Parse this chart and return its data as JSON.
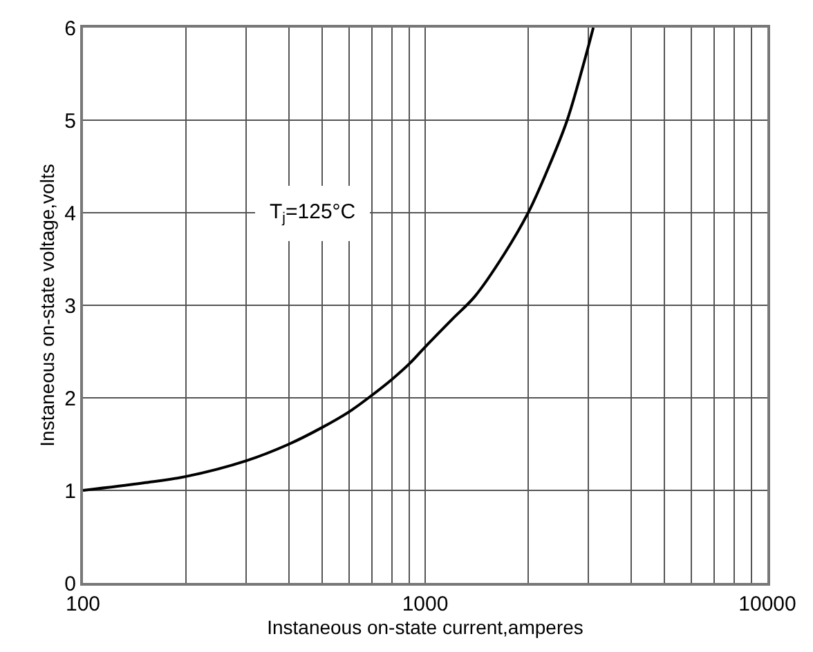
{
  "chart_data": {
    "type": "line",
    "xlabel": "Instaneous on-state current,amperes",
    "ylabel": "Instaneous on-state voltage,volts",
    "annotations": [
      "T$_{j}$=125°C"
    ],
    "x": [
      100,
      150,
      200,
      300,
      400,
      500,
      600,
      700,
      800,
      900,
      1000,
      1200,
      1400,
      1700,
      2000,
      2300,
      2600,
      2900,
      3100
    ],
    "series": [
      {
        "color": "#000000",
        "values": [
          1.0,
          1.08,
          1.15,
          1.32,
          1.5,
          1.68,
          1.85,
          2.03,
          2.2,
          2.37,
          2.55,
          2.85,
          3.1,
          3.55,
          4.0,
          4.5,
          5.0,
          5.6,
          6.0
        ]
      }
    ],
    "log": "x",
    "xlim": [
      100,
      10000
    ],
    "xticks": [
      100,
      1000,
      10000
    ],
    "ylim": [
      0,
      6
    ],
    "yticks": [
      0,
      1,
      2,
      3,
      4,
      5,
      6
    ],
    "grid": true,
    "line_style": "solid",
    "marker": "none"
  }
}
